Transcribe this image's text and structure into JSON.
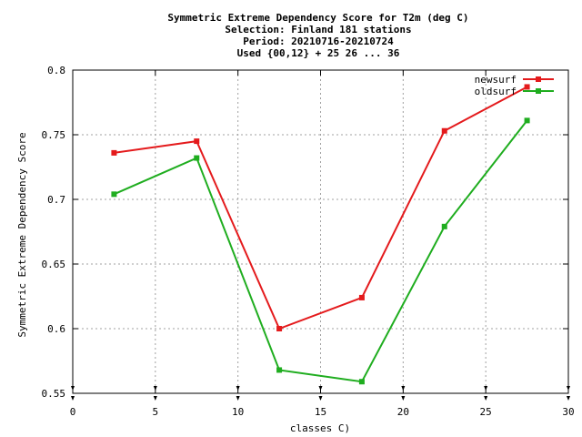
{
  "title_lines": [
    "Symmetric Extreme Dependency Score  for T2m (deg C)",
    "Selection: Finland    181 stations",
    "Period: 20210716-20210724",
    "Used {00,12} + 25 26 ... 36"
  ],
  "chart_data": {
    "type": "line",
    "xlabel": "classes C)",
    "ylabel": "Symmetric Extreme Dependency Score",
    "xlim": [
      0,
      30
    ],
    "ylim": [
      0.55,
      0.8
    ],
    "xticks": [
      0,
      5,
      10,
      15,
      20,
      25,
      30
    ],
    "yticks": [
      0.55,
      0.6,
      0.65,
      0.7,
      0.75,
      0.8
    ],
    "xtick_labels": [
      "0",
      "5",
      "10",
      "15",
      "20",
      "25",
      "30"
    ],
    "ytick_labels": [
      "0.55",
      "0.6",
      "0.65",
      "0.7",
      "0.75",
      "0.8"
    ],
    "grid": true,
    "legend_position": "top-right",
    "series": [
      {
        "name": "newsurf",
        "color": "#e41a1c",
        "x": [
          2.5,
          7.5,
          12.5,
          17.5,
          22.5,
          27.5
        ],
        "y": [
          0.736,
          0.745,
          0.6,
          0.624,
          0.753,
          0.787
        ]
      },
      {
        "name": "oldsurf",
        "color": "#1fad1f",
        "x": [
          2.5,
          7.5,
          12.5,
          17.5,
          22.5,
          27.5
        ],
        "y": [
          0.704,
          0.732,
          0.568,
          0.559,
          0.679,
          0.761
        ]
      }
    ]
  }
}
